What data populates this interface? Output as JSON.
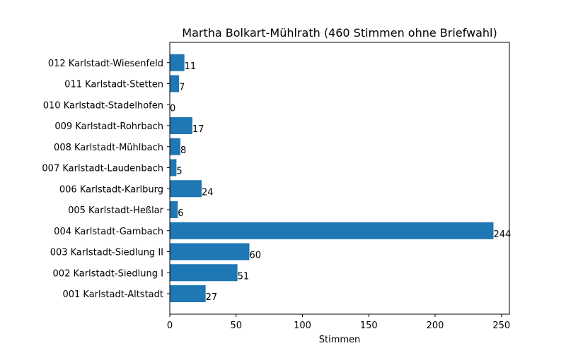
{
  "chart_data": {
    "type": "bar",
    "orientation": "horizontal",
    "title": "Martha Bolkart-Mühlrath (460 Stimmen ohne Briefwahl)",
    "xlabel": "Stimmen",
    "ylabel": "",
    "xlim": [
      0,
      256
    ],
    "xticks": [
      "0",
      "50",
      "100",
      "150",
      "200",
      "250"
    ],
    "grid": false,
    "bar_color": "#1f77b4",
    "categories": [
      "001 Karlstadt-Altstadt",
      "002 Karlstadt-Siedlung I",
      "003 Karlstadt-Siedlung II",
      "004 Karlstadt-Gambach",
      "005 Karlstadt-Heßlar",
      "006 Karlstadt-Karlburg",
      "007 Karlstadt-Laudenbach",
      "008 Karlstadt-Mühlbach",
      "009 Karlstadt-Rohrbach",
      "010 Karlstadt-Stadelhofen",
      "011 Karlstadt-Stetten",
      "012 Karlstadt-Wiesenfeld"
    ],
    "values": [
      27,
      51,
      60,
      244,
      6,
      24,
      5,
      8,
      17,
      0,
      7,
      11
    ],
    "value_labels": [
      "27",
      "51",
      "60",
      "244",
      "6",
      "24",
      "5",
      "8",
      "17",
      "0",
      "7",
      "11"
    ]
  }
}
